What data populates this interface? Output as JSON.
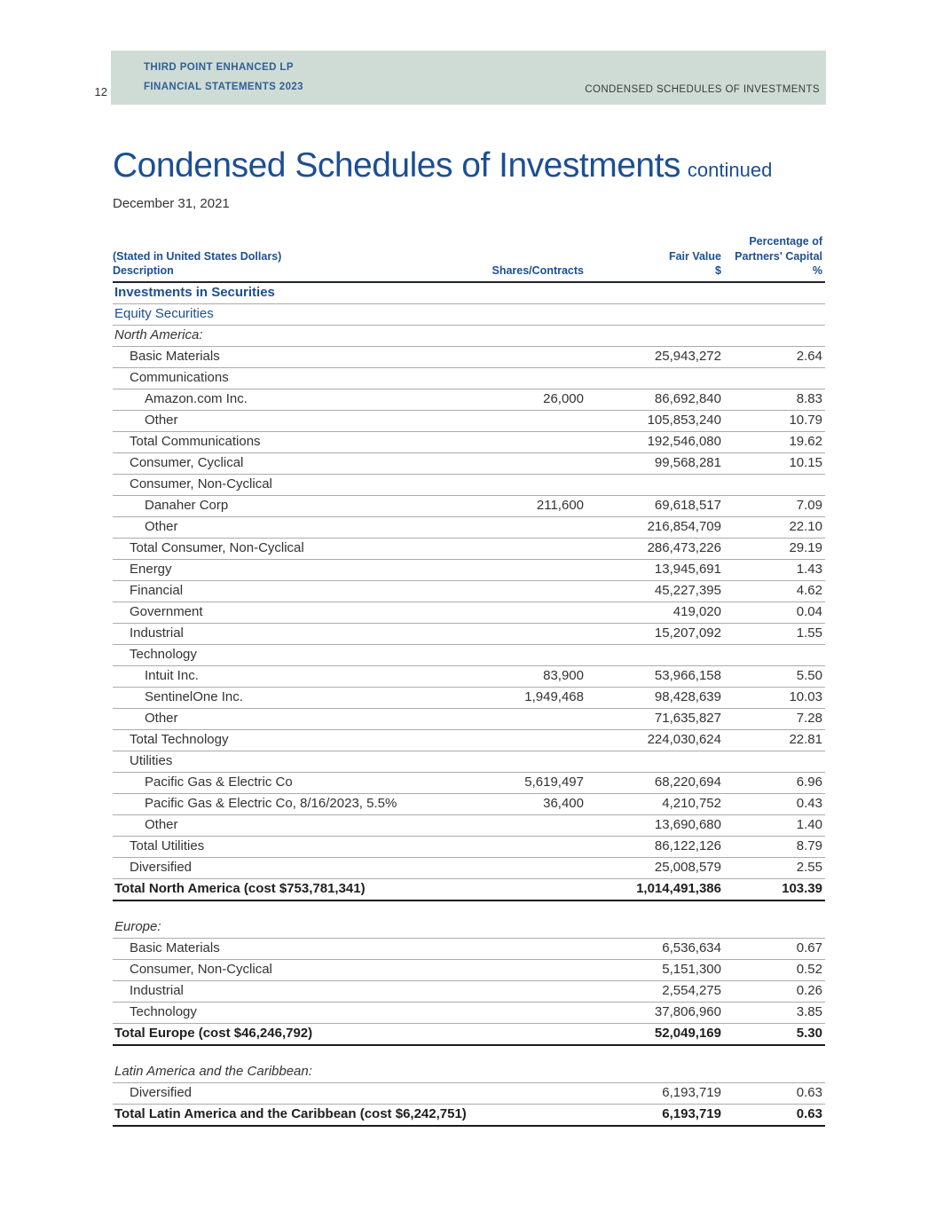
{
  "colors": {
    "accent_blue": "#1c4f92",
    "band_background": "#cfdcd5",
    "body_text": "#333333",
    "rule_gray": "#ababab",
    "rule_dark": "#1b1b1b"
  },
  "page_header": {
    "page_number": "12",
    "org_line1": "THIRD POINT ENHANCED LP",
    "org_line2": "FINANCIAL STATEMENTS 2023",
    "right_text": "CONDENSED SCHEDULES OF INVESTMENTS"
  },
  "title": {
    "main": "Condensed Schedules of Investments",
    "suffix": "continued",
    "date": "December 31, 2021"
  },
  "table": {
    "header": {
      "stated": "(Stated in United States Dollars)",
      "description": "Description",
      "shares": "Shares/Contracts",
      "fair_value_line1": "Fair Value",
      "fair_value_line2": "$",
      "pct_line0": "Percentage of",
      "pct_line1": "Partners' Capital",
      "pct_line2": "%"
    },
    "rows": [
      {
        "label": "Investments in Securities",
        "style": "section-blue-bold",
        "indent": 0
      },
      {
        "label": "Equity Securities",
        "style": "blue",
        "indent": 0
      },
      {
        "label": "North America:",
        "style": "italic",
        "indent": 0
      },
      {
        "label": "Basic Materials",
        "indent": 1,
        "fair_value": "25,943,272",
        "pct": "2.64"
      },
      {
        "label": "Communications",
        "indent": 1
      },
      {
        "label": "Amazon.com Inc.",
        "indent": 2,
        "shares": "26,000",
        "fair_value": "86,692,840",
        "pct": "8.83"
      },
      {
        "label": "Other",
        "indent": 2,
        "fair_value": "105,853,240",
        "pct": "10.79"
      },
      {
        "label": "Total Communications",
        "indent": 1,
        "fair_value": "192,546,080",
        "pct": "19.62"
      },
      {
        "label": "Consumer, Cyclical",
        "indent": 1,
        "fair_value": "99,568,281",
        "pct": "10.15"
      },
      {
        "label": "Consumer, Non-Cyclical",
        "indent": 1
      },
      {
        "label": "Danaher Corp",
        "indent": 2,
        "shares": "211,600",
        "fair_value": "69,618,517",
        "pct": "7.09"
      },
      {
        "label": "Other",
        "indent": 2,
        "fair_value": "216,854,709",
        "pct": "22.10"
      },
      {
        "label": "Total Consumer, Non-Cyclical",
        "indent": 1,
        "fair_value": "286,473,226",
        "pct": "29.19"
      },
      {
        "label": "Energy",
        "indent": 1,
        "fair_value": "13,945,691",
        "pct": "1.43"
      },
      {
        "label": "Financial",
        "indent": 1,
        "fair_value": "45,227,395",
        "pct": "4.62"
      },
      {
        "label": "Government",
        "indent": 1,
        "fair_value": "419,020",
        "pct": "0.04"
      },
      {
        "label": "Industrial",
        "indent": 1,
        "fair_value": "15,207,092",
        "pct": "1.55"
      },
      {
        "label": "Technology",
        "indent": 1
      },
      {
        "label": "Intuit Inc.",
        "indent": 2,
        "shares": "83,900",
        "fair_value": "53,966,158",
        "pct": "5.50"
      },
      {
        "label": "SentinelOne Inc.",
        "indent": 2,
        "shares": "1,949,468",
        "fair_value": "98,428,639",
        "pct": "10.03"
      },
      {
        "label": "Other",
        "indent": 2,
        "fair_value": "71,635,827",
        "pct": "7.28"
      },
      {
        "label": "Total Technology",
        "indent": 1,
        "fair_value": "224,030,624",
        "pct": "22.81"
      },
      {
        "label": "Utilities",
        "indent": 1
      },
      {
        "label": "Pacific Gas & Electric Co",
        "indent": 2,
        "shares": "5,619,497",
        "fair_value": "68,220,694",
        "pct": "6.96"
      },
      {
        "label": "Pacific Gas & Electric Co, 8/16/2023, 5.5%",
        "indent": 2,
        "shares": "36,400",
        "fair_value": "4,210,752",
        "pct": "0.43"
      },
      {
        "label": "Other",
        "indent": 2,
        "fair_value": "13,690,680",
        "pct": "1.40"
      },
      {
        "label": "Total Utilities",
        "indent": 1,
        "fair_value": "86,122,126",
        "pct": "8.79"
      },
      {
        "label": "Diversified",
        "indent": 1,
        "fair_value": "25,008,579",
        "pct": "2.55"
      },
      {
        "label": "Total North America (cost $753,781,341)",
        "style": "total",
        "indent": 0,
        "fair_value": "1,014,491,386",
        "pct": "103.39"
      },
      {
        "style": "spacer"
      },
      {
        "label": "Europe:",
        "style": "italic",
        "indent": 0
      },
      {
        "label": "Basic Materials",
        "indent": 1,
        "fair_value": "6,536,634",
        "pct": "0.67"
      },
      {
        "label": "Consumer, Non-Cyclical",
        "indent": 1,
        "fair_value": "5,151,300",
        "pct": "0.52"
      },
      {
        "label": "Industrial",
        "indent": 1,
        "fair_value": "2,554,275",
        "pct": "0.26"
      },
      {
        "label": "Technology",
        "indent": 1,
        "fair_value": "37,806,960",
        "pct": "3.85"
      },
      {
        "label": "Total Europe (cost $46,246,792)",
        "style": "total",
        "indent": 0,
        "fair_value": "52,049,169",
        "pct": "5.30"
      },
      {
        "style": "spacer"
      },
      {
        "label": "Latin America and the Caribbean:",
        "style": "italic",
        "indent": 0
      },
      {
        "label": "Diversified",
        "indent": 1,
        "fair_value": "6,193,719",
        "pct": "0.63"
      },
      {
        "label": "Total Latin America and the Caribbean (cost $6,242,751)",
        "style": "total",
        "indent": 0,
        "fair_value": "6,193,719",
        "pct": "0.63"
      }
    ]
  }
}
